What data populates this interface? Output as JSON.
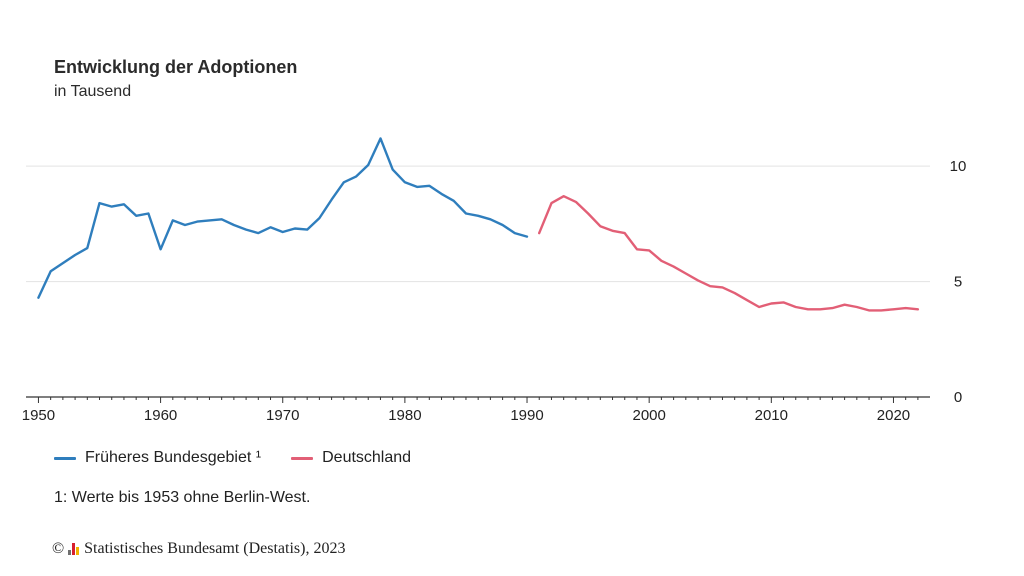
{
  "chart_data": {
    "type": "line",
    "title": "Entwicklung der Adoptionen",
    "subtitle": "in Tausend",
    "xlabel": "",
    "ylabel": "",
    "xlim": [
      1949.8,
      2022.5
    ],
    "ylim": [
      0,
      12
    ],
    "x_ticks": [
      1950,
      1960,
      1970,
      1980,
      1990,
      2000,
      2010,
      2020
    ],
    "y_ticks": [
      0,
      5,
      10
    ],
    "grid": true,
    "legend_position": "bottom-left",
    "series": [
      {
        "name": "Früheres Bundesgebiet ¹",
        "color": "#2f7ebd",
        "points": [
          [
            1950,
            4.3
          ],
          [
            1951,
            5.45
          ],
          [
            1952,
            5.8
          ],
          [
            1953,
            6.15
          ],
          [
            1954,
            6.45
          ],
          [
            1955,
            8.4
          ],
          [
            1956,
            8.25
          ],
          [
            1957,
            8.35
          ],
          [
            1958,
            7.85
          ],
          [
            1959,
            7.95
          ],
          [
            1960,
            6.4
          ],
          [
            1961,
            7.65
          ],
          [
            1962,
            7.45
          ],
          [
            1963,
            7.6
          ],
          [
            1964,
            7.65
          ],
          [
            1965,
            7.7
          ],
          [
            1966,
            7.45
          ],
          [
            1967,
            7.25
          ],
          [
            1968,
            7.1
          ],
          [
            1969,
            7.35
          ],
          [
            1970,
            7.15
          ],
          [
            1971,
            7.3
          ],
          [
            1972,
            7.25
          ],
          [
            1973,
            7.75
          ],
          [
            1974,
            8.55
          ],
          [
            1975,
            9.3
          ],
          [
            1976,
            9.55
          ],
          [
            1977,
            10.05
          ],
          [
            1978,
            11.2
          ],
          [
            1979,
            9.85
          ],
          [
            1980,
            9.3
          ],
          [
            1981,
            9.1
          ],
          [
            1982,
            9.15
          ],
          [
            1983,
            8.8
          ],
          [
            1984,
            8.5
          ],
          [
            1985,
            7.95
          ],
          [
            1986,
            7.85
          ],
          [
            1987,
            7.7
          ],
          [
            1988,
            7.45
          ],
          [
            1989,
            7.1
          ],
          [
            1990,
            6.95
          ]
        ]
      },
      {
        "name": "Deutschland",
        "color": "#e25f76",
        "points": [
          [
            1991,
            7.1
          ],
          [
            1992,
            8.4
          ],
          [
            1993,
            8.7
          ],
          [
            1994,
            8.45
          ],
          [
            1995,
            7.95
          ],
          [
            1996,
            7.4
          ],
          [
            1997,
            7.2
          ],
          [
            1998,
            7.1
          ],
          [
            1999,
            6.4
          ],
          [
            2000,
            6.35
          ],
          [
            2001,
            5.9
          ],
          [
            2002,
            5.65
          ],
          [
            2003,
            5.35
          ],
          [
            2004,
            5.05
          ],
          [
            2005,
            4.8
          ],
          [
            2006,
            4.75
          ],
          [
            2007,
            4.5
          ],
          [
            2008,
            4.2
          ],
          [
            2009,
            3.9
          ],
          [
            2010,
            4.05
          ],
          [
            2011,
            4.1
          ],
          [
            2012,
            3.9
          ],
          [
            2013,
            3.8
          ],
          [
            2014,
            3.8
          ],
          [
            2015,
            3.85
          ],
          [
            2016,
            4.0
          ],
          [
            2017,
            3.9
          ],
          [
            2018,
            3.75
          ],
          [
            2019,
            3.75
          ],
          [
            2020,
            3.8
          ],
          [
            2021,
            3.85
          ],
          [
            2022,
            3.8
          ]
        ]
      }
    ]
  },
  "footnote": "1: Werte bis 1953 ohne Berlin-West.",
  "source": {
    "copyright": "©",
    "text": "Statistisches Bundesamt (Destatis), 2023"
  }
}
